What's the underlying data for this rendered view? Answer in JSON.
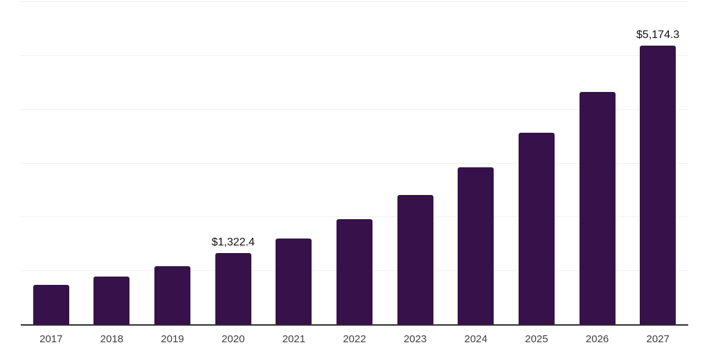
{
  "chart_data": {
    "type": "bar",
    "title": "",
    "xlabel": "",
    "ylabel": "",
    "categories": [
      "2017",
      "2018",
      "2019",
      "2020",
      "2021",
      "2022",
      "2023",
      "2024",
      "2025",
      "2026",
      "2027"
    ],
    "values": [
      730,
      885,
      1085,
      1322.4,
      1590,
      1950,
      2400,
      2915,
      3560,
      4320,
      5174.3
    ],
    "data_labels": [
      {
        "category": "2020",
        "text": "$1,322.4"
      },
      {
        "category": "2027",
        "text": "$5,174.3"
      }
    ],
    "ylim": [
      0,
      6000
    ],
    "gridline_interval": 1000,
    "grid": "horizontal-only",
    "y_tick_labels_shown": false,
    "legend": "none",
    "colors": {
      "bar": "#36114A",
      "gridline": "#f1f1f2",
      "axis_line": "#2e2e2e",
      "tick_label": "#3e3e3e",
      "value_label": "#111111",
      "background": "#ffffff"
    }
  }
}
